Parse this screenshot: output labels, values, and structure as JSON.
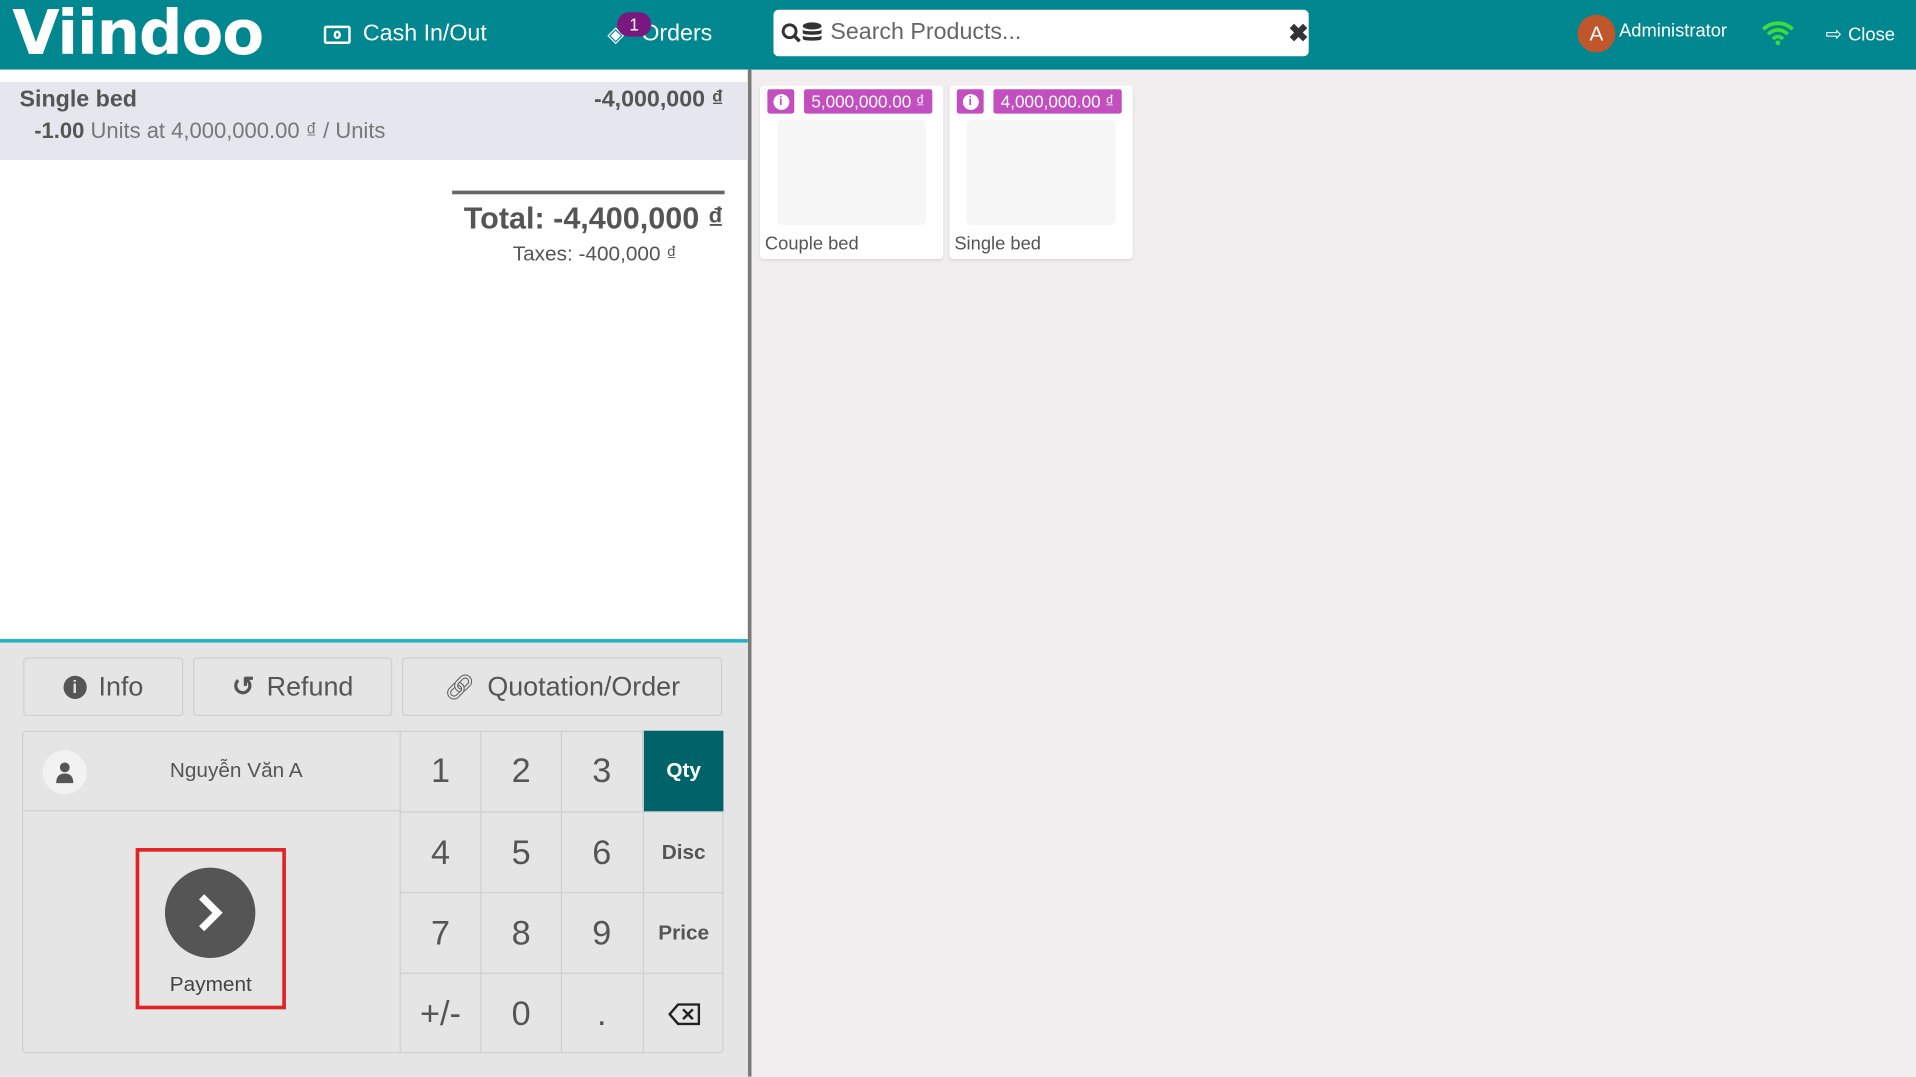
{
  "header": {
    "logo": "Viindoo",
    "cash_label": "Cash In/Out",
    "orders_label": "Orders",
    "orders_count": "1",
    "search_placeholder": "Search Products...",
    "user_initial": "A",
    "user_name": "Administrator",
    "close_label": "Close"
  },
  "order": {
    "lines": [
      {
        "name": "Single bed",
        "price": "-4,000,000 ₫",
        "qty": "-1.00",
        "detail": "Units at 4,000,000.00 ₫ / Units"
      }
    ],
    "total": "Total: -4,400,000 ₫",
    "taxes": "Taxes: -400,000 ₫"
  },
  "actions": {
    "info": "Info",
    "refund": "Refund",
    "quotation": "Quotation/Order"
  },
  "customer": "Nguyễn Văn A",
  "payment_label": "Payment",
  "numpad": {
    "keys": [
      "1",
      "2",
      "3",
      "4",
      "5",
      "6",
      "7",
      "8",
      "9",
      "+/-",
      "0",
      "."
    ],
    "modes": [
      "Qty",
      "Disc",
      "Price"
    ],
    "active_mode": "Qty"
  },
  "products": [
    {
      "name": "Couple bed",
      "price": "5,000,000.00 ₫"
    },
    {
      "name": "Single bed",
      "price": "4,000,000.00 ₫"
    }
  ],
  "colors": {
    "header": "#01878f",
    "active_mode": "#00636a",
    "price_tag": "#c34ebf",
    "highlight_box": "#e02424"
  }
}
